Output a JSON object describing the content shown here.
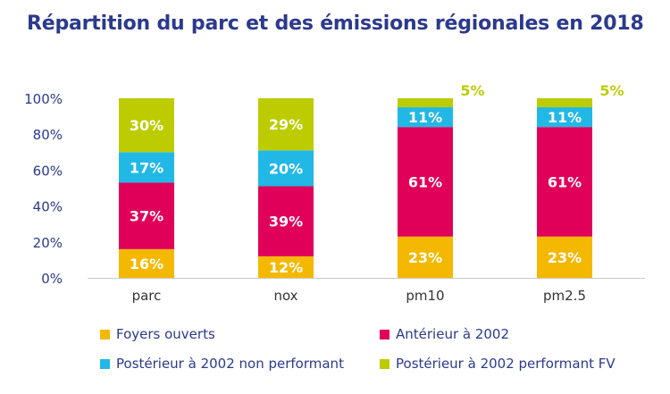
{
  "chart_data": {
    "type": "bar",
    "stacked": true,
    "title": "Répartition du parc et des émissions régionales en 2018",
    "categories": [
      "parc",
      "nox",
      "pm10",
      "pm2.5"
    ],
    "series": [
      {
        "name": "Foyers ouverts",
        "color": "#f5b800",
        "values": [
          16,
          12,
          23,
          23
        ],
        "labels": [
          "16%",
          "12%",
          "23%",
          "23%"
        ]
      },
      {
        "name": "Antérieur à 2002",
        "color": "#e0005a",
        "values": [
          37,
          39,
          61,
          61
        ],
        "labels": [
          "37%",
          "39%",
          "61%",
          "61%"
        ]
      },
      {
        "name": "Postérieur à 2002 non performant",
        "color": "#22b8e6",
        "values": [
          17,
          20,
          11,
          11
        ],
        "labels": [
          "17%",
          "20%",
          "11%",
          "11%"
        ]
      },
      {
        "name": "Postérieur à 2002 performant FV",
        "color": "#bccc00",
        "values": [
          30,
          29,
          5,
          5
        ],
        "labels": [
          "30%",
          "29%",
          "5%",
          "5%"
        ]
      }
    ],
    "yticks": [
      "0%",
      "20%",
      "40%",
      "60%",
      "80%",
      "100%"
    ],
    "ylim": [
      0,
      100
    ],
    "xlabel": "",
    "ylabel": "",
    "grid": false,
    "legend_position": "bottom"
  }
}
